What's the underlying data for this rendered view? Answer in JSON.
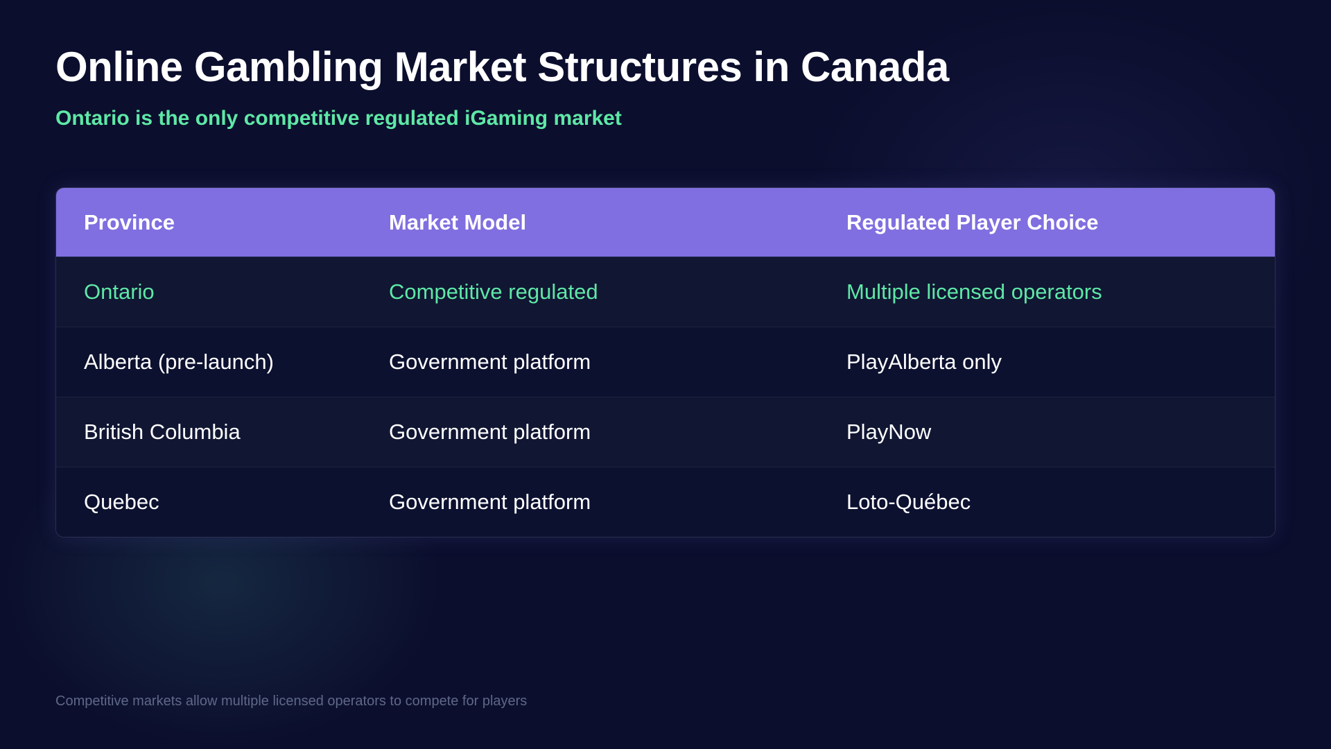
{
  "title": "Online Gambling Market Structures in Canada",
  "subtitle": "Ontario is the only competitive regulated iGaming market",
  "table": {
    "headers": [
      "Province",
      "Market Model",
      "Regulated Player Choice"
    ],
    "rows": [
      [
        "Ontario",
        "Competitive regulated",
        "Multiple licensed operators"
      ],
      [
        "Alberta (pre-launch)",
        "Government platform",
        "PlayAlberta only"
      ],
      [
        "British Columbia",
        "Government platform",
        "PlayNow"
      ],
      [
        "Quebec",
        "Government platform",
        "Loto-Québec"
      ]
    ]
  },
  "footnote": "Competitive markets allow multiple licensed operators to compete for players",
  "colors": {
    "accent": "#7f6fe0",
    "highlight": "#5ee8a6",
    "background": "#0b0e2d"
  }
}
